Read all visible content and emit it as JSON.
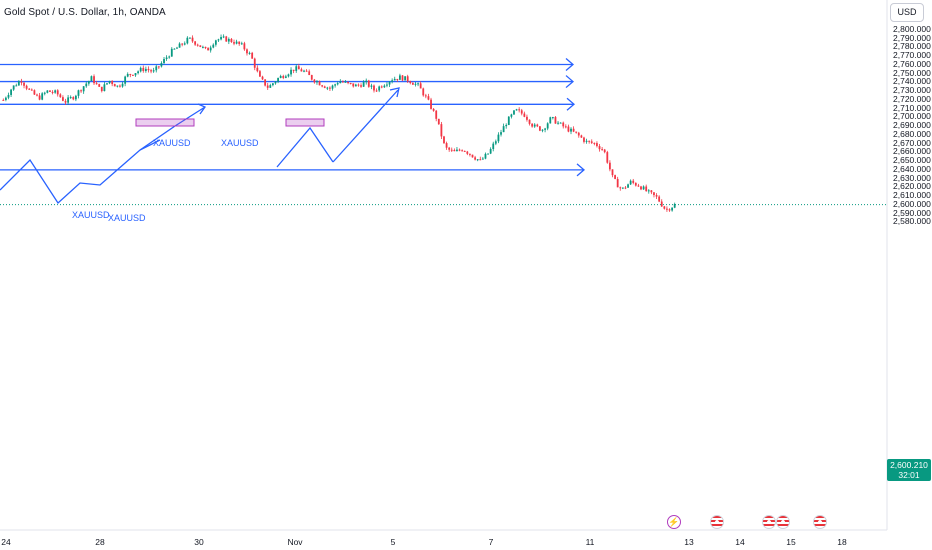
{
  "header": {
    "title": "Gold Spot / U.S. Dollar, 1h, OANDA",
    "currency_button": "USD"
  },
  "price_tag": {
    "price": "2,600.210",
    "countdown": "32:01",
    "color": "#089981"
  },
  "colors": {
    "up": "#089981",
    "down": "#f23645",
    "drawing": "#2962ff",
    "box": "#b03cbe"
  },
  "annotations": [
    {
      "id": "xauusd-1",
      "text": "XAUUSD"
    },
    {
      "id": "xauusd-2",
      "text": "XAUUSD"
    },
    {
      "id": "xauusd-3",
      "text": "XAUUSD"
    },
    {
      "id": "xauusd-4",
      "text": "XAUUSD"
    }
  ],
  "events": [
    {
      "icon": "lightning-event-icon"
    },
    {
      "icon": "us-flag-event-icon"
    },
    {
      "icon": "us-flag-event-icon"
    },
    {
      "icon": "us-flag-event-icon"
    },
    {
      "icon": "us-flag-event-icon"
    }
  ],
  "chart_data": {
    "type": "candlestick",
    "symbol": "XAUUSD",
    "interval": "1h",
    "y_axis": {
      "range": [
        2575,
        2805
      ],
      "ticks": [
        "2,800.000",
        "2,790.000",
        "2,780.000",
        "2,770.000",
        "2,760.000",
        "2,750.000",
        "2,740.000",
        "2,730.000",
        "2,720.000",
        "2,710.000",
        "2,700.000",
        "2,690.000",
        "2,680.000",
        "2,670.000",
        "2,660.000",
        "2,650.000",
        "2,640.000",
        "2,630.000",
        "2,620.000",
        "2,610.000",
        "2,600.000",
        "2,590.000",
        "2,580.000"
      ]
    },
    "x_axis": {
      "ticks": [
        "24",
        "28",
        "30",
        "Nov",
        "5",
        "7",
        "11",
        "13",
        "14",
        "15",
        "18"
      ]
    },
    "close_line": 2600.21,
    "horizontal_rays": [
      2760.5,
      2741.0,
      2715.0,
      2640.0
    ],
    "price_path": [
      2720,
      2734,
      2743,
      2730,
      2722,
      2730,
      2728,
      2718,
      2724,
      2735,
      2745,
      2731,
      2742,
      2735,
      2748,
      2752,
      2756,
      2752,
      2763,
      2775,
      2782,
      2790,
      2784,
      2776,
      2789,
      2790,
      2787,
      2782,
      2771,
      2745,
      2734,
      2744,
      2750,
      2756,
      2753,
      2744,
      2738,
      2733,
      2742,
      2738,
      2736,
      2740,
      2731,
      2738,
      2744,
      2746,
      2742,
      2736,
      2720,
      2700,
      2665,
      2660,
      2664,
      2657,
      2650,
      2660,
      2678,
      2695,
      2708,
      2703,
      2690,
      2686,
      2699,
      2692,
      2686,
      2680,
      2672,
      2670,
      2662,
      2630,
      2617,
      2626,
      2622,
      2614,
      2608,
      2594,
      2600
    ]
  }
}
